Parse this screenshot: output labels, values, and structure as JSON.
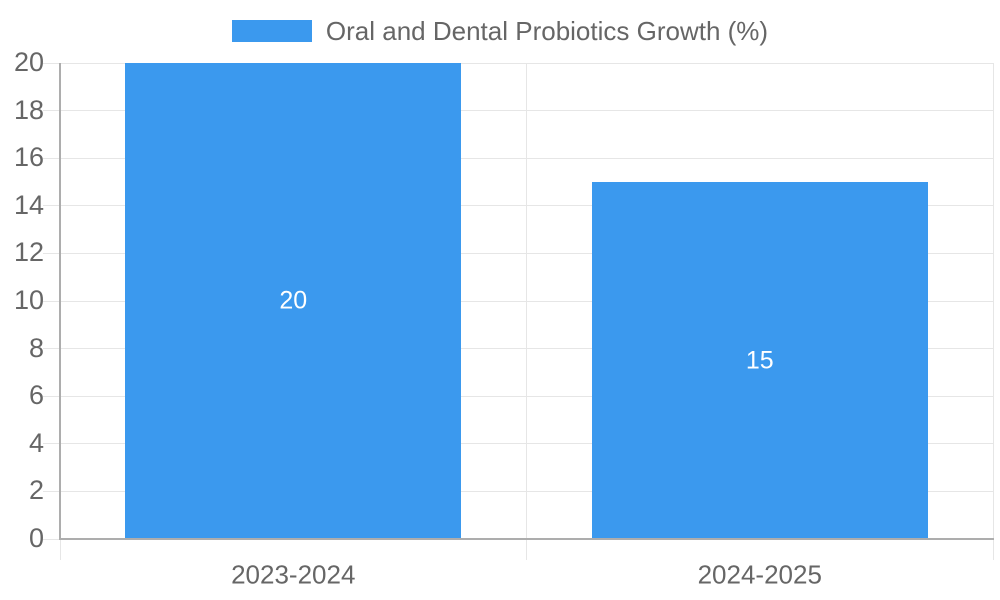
{
  "chart_data": {
    "type": "bar",
    "title": "Oral and Dental Probiotics Growth (%)",
    "legend": {
      "position": "top",
      "entries": [
        {
          "label": "Oral and Dental Probiotics Growth (%)",
          "color": "#3B99EE"
        }
      ]
    },
    "categories": [
      "2023-2024",
      "2024-2025"
    ],
    "series": [
      {
        "name": "Oral and Dental Probiotics Growth (%)",
        "values": [
          20,
          15
        ]
      }
    ],
    "bar_value_labels": [
      "20",
      "15"
    ],
    "xlabel": "",
    "ylabel": "",
    "ylim": [
      0,
      20
    ],
    "ytick_step": 2,
    "yticks": [
      0,
      2,
      4,
      6,
      8,
      10,
      12,
      14,
      16,
      18,
      20
    ],
    "grid": true,
    "bar_width_fraction": 0.72,
    "colors": {
      "bar": "#3B99EE",
      "axis_line": "#ADADAD",
      "gridline": "#E6E6E6",
      "label_text": "#666666",
      "bar_value_text": "#FFFFFF",
      "background": "#FFFFFF"
    }
  }
}
